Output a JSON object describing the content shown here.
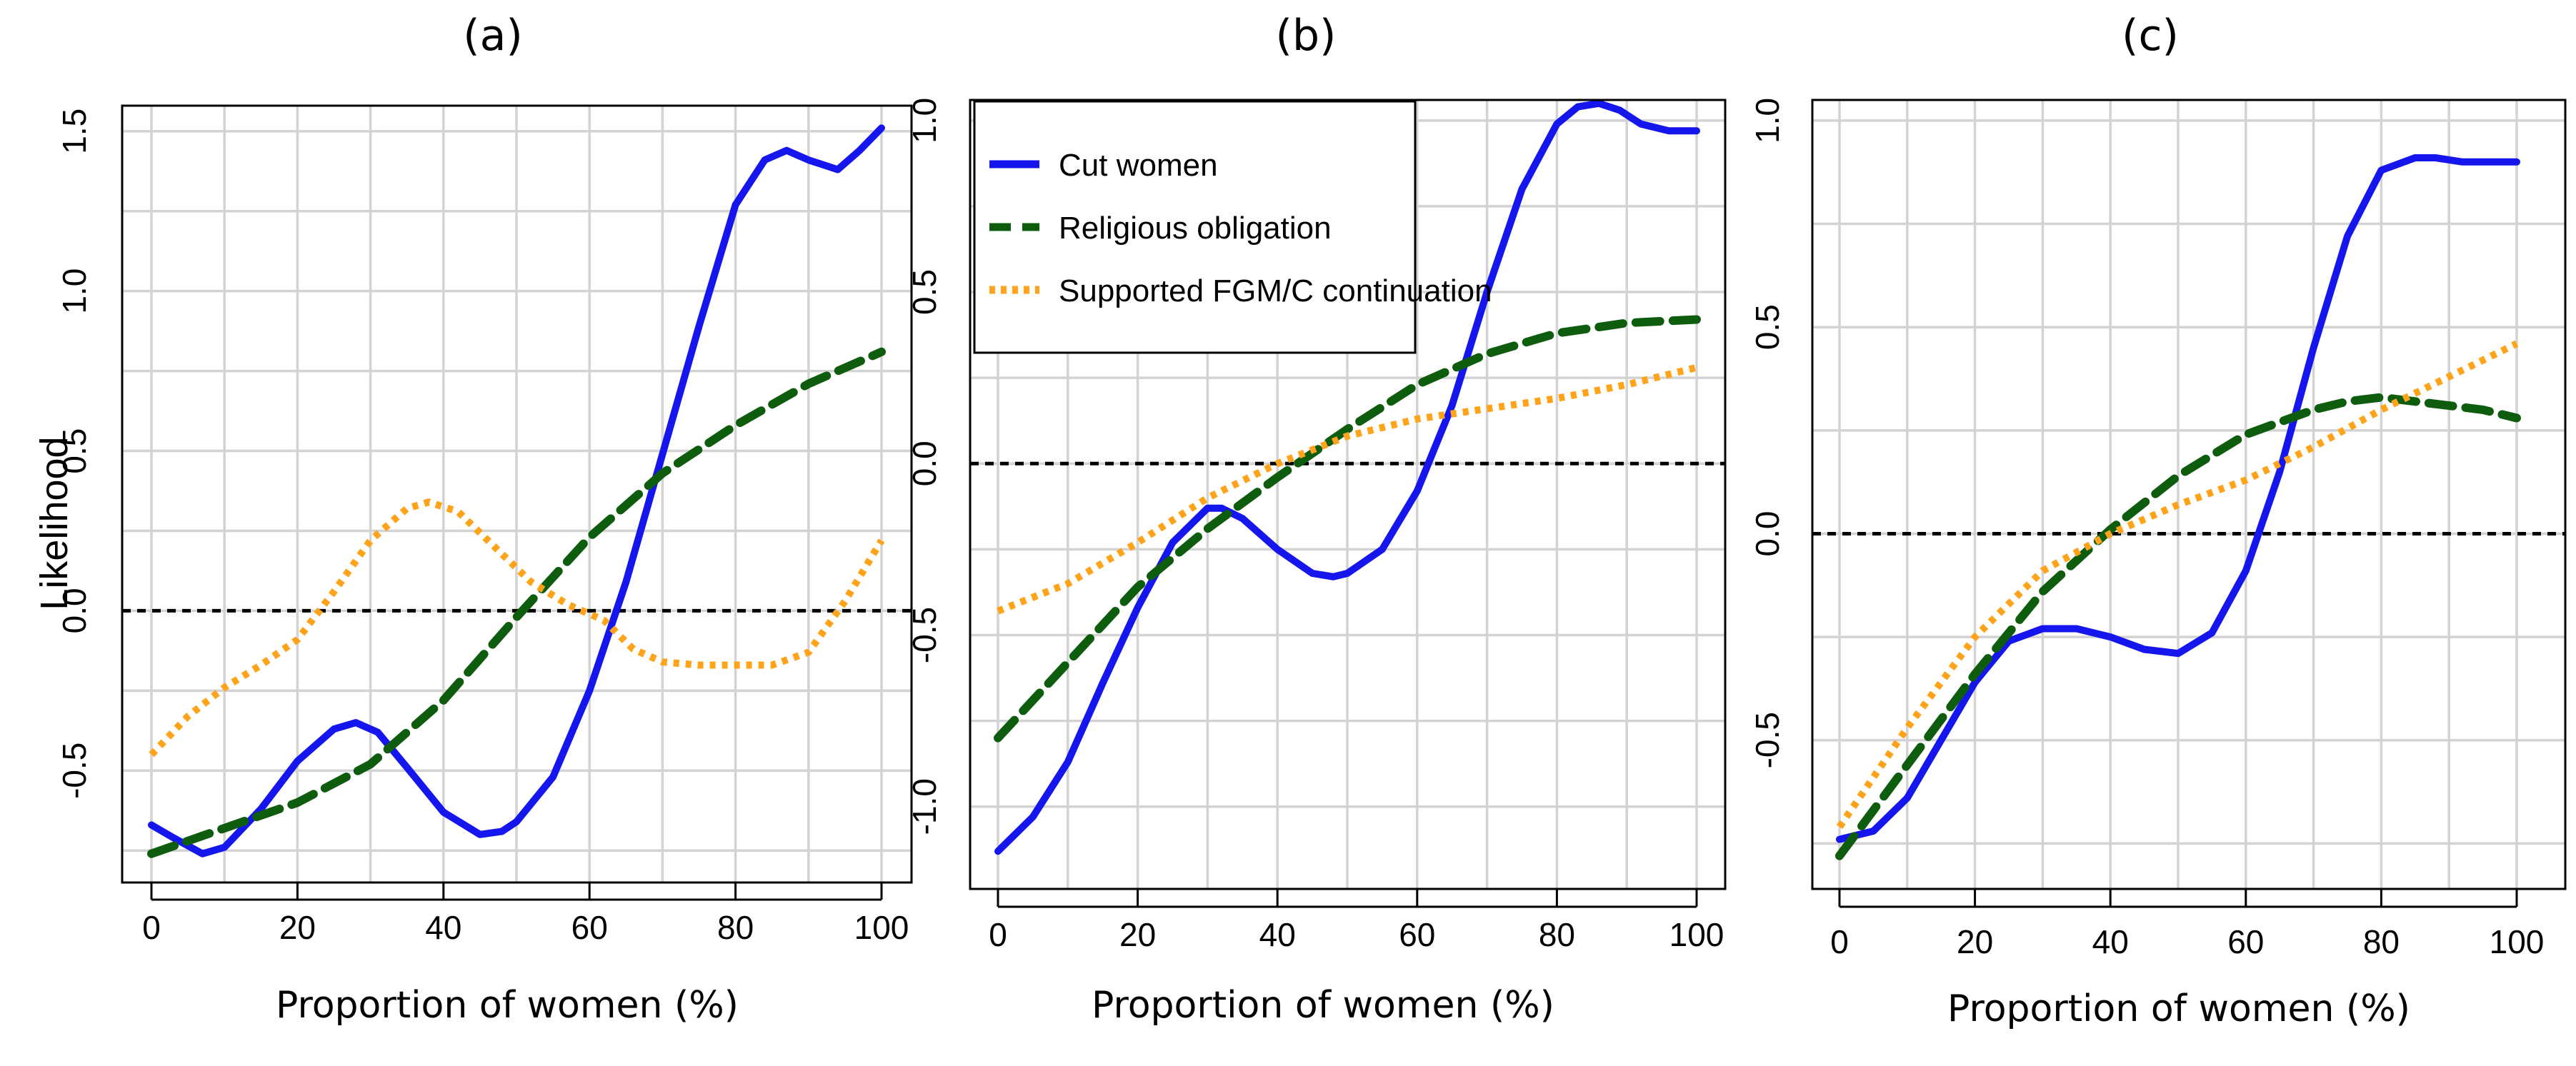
{
  "chart_data": [
    {
      "type": "line",
      "panel_title": "(a)",
      "xlabel": "Proportion of women (%)",
      "ylabel": "Likelihood",
      "xlim": [
        0,
        100
      ],
      "ylim": [
        -0.85,
        1.58
      ],
      "xticks": [
        0,
        20,
        40,
        60,
        80,
        100
      ],
      "yticks": [
        -0.5,
        0.0,
        0.5,
        1.0,
        1.5
      ],
      "ytick_labels": [
        "-0.5",
        "0.0",
        "0.5",
        "1.0",
        "1.5"
      ],
      "grid": true,
      "reference_line_y": 0.0,
      "series": [
        {
          "name": "Cut women",
          "color": "#1515ee",
          "style": "solid",
          "x": [
            0,
            3,
            7,
            10,
            15,
            20,
            25,
            28,
            31,
            35,
            40,
            45,
            48,
            50,
            55,
            60,
            65,
            70,
            75,
            80,
            84,
            87,
            90,
            94,
            97,
            100
          ],
          "y": [
            -0.67,
            -0.71,
            -0.76,
            -0.74,
            -0.62,
            -0.47,
            -0.37,
            -0.35,
            -0.38,
            -0.49,
            -0.63,
            -0.7,
            -0.69,
            -0.66,
            -0.52,
            -0.25,
            0.09,
            0.49,
            0.89,
            1.27,
            1.41,
            1.44,
            1.41,
            1.38,
            1.44,
            1.51
          ]
        },
        {
          "name": "Religious obligation",
          "color": "#0e5c0e",
          "style": "dashed",
          "x": [
            0,
            10,
            20,
            30,
            40,
            50,
            60,
            70,
            80,
            90,
            100
          ],
          "y": [
            -0.76,
            -0.68,
            -0.6,
            -0.48,
            -0.28,
            -0.02,
            0.23,
            0.43,
            0.58,
            0.71,
            0.81
          ]
        },
        {
          "name": "Supported FGM/C continuation",
          "color": "#ffa31a",
          "style": "dotted",
          "x": [
            0,
            5,
            10,
            15,
            20,
            25,
            30,
            35,
            38,
            42,
            47,
            52,
            57,
            62,
            66,
            70,
            75,
            80,
            85,
            90,
            95,
            100
          ],
          "y": [
            -0.45,
            -0.33,
            -0.24,
            -0.17,
            -0.09,
            0.06,
            0.22,
            0.32,
            0.34,
            0.31,
            0.2,
            0.09,
            0.02,
            -0.03,
            -0.12,
            -0.16,
            -0.17,
            -0.17,
            -0.17,
            -0.13,
            0.03,
            0.22
          ]
        }
      ]
    },
    {
      "type": "line",
      "panel_title": "(b)",
      "xlabel": "Proportion of women (%)",
      "ylabel": "",
      "xlim": [
        0,
        100
      ],
      "ylim": [
        -1.24,
        1.06
      ],
      "xticks": [
        0,
        20,
        40,
        60,
        80,
        100
      ],
      "yticks": [
        -1.0,
        -0.5,
        0.0,
        0.5,
        1.0
      ],
      "ytick_labels": [
        "-1.0",
        "-0.5",
        "0.0",
        "0.5",
        "1.0"
      ],
      "grid": true,
      "reference_line_y": 0.0,
      "legend_position": "top-left",
      "series": [
        {
          "name": "Cut women",
          "color": "#1515ee",
          "style": "solid",
          "x": [
            0,
            5,
            10,
            15,
            20,
            25,
            30,
            32,
            35,
            40,
            45,
            48,
            50,
            55,
            60,
            65,
            70,
            75,
            80,
            83,
            86,
            89,
            92,
            96,
            100
          ],
          "y": [
            -1.13,
            -1.03,
            -0.87,
            -0.64,
            -0.42,
            -0.23,
            -0.13,
            -0.13,
            -0.16,
            -0.25,
            -0.32,
            -0.33,
            -0.32,
            -0.25,
            -0.08,
            0.17,
            0.5,
            0.8,
            0.99,
            1.04,
            1.05,
            1.03,
            0.99,
            0.97,
            0.97
          ]
        },
        {
          "name": "Religious obligation",
          "color": "#0e5c0e",
          "style": "dashed",
          "x": [
            0,
            10,
            20,
            30,
            40,
            50,
            60,
            70,
            80,
            90,
            100
          ],
          "y": [
            -0.8,
            -0.58,
            -0.36,
            -0.19,
            -0.04,
            0.1,
            0.23,
            0.32,
            0.38,
            0.41,
            0.42
          ]
        },
        {
          "name": "Supported FGM/C continuation",
          "color": "#ffa31a",
          "style": "dotted",
          "x": [
            0,
            10,
            20,
            30,
            40,
            50,
            60,
            70,
            80,
            90,
            100
          ],
          "y": [
            -0.43,
            -0.35,
            -0.23,
            -0.1,
            0.0,
            0.08,
            0.13,
            0.16,
            0.19,
            0.23,
            0.28
          ]
        }
      ],
      "legend": [
        "Cut women",
        "Religious obligation",
        "Supported FGM/C continuation"
      ]
    },
    {
      "type": "line",
      "panel_title": "(c)",
      "xlabel": "Proportion of women (%)",
      "ylabel": "",
      "xlim": [
        0,
        100
      ],
      "ylim": [
        -0.86,
        1.05
      ],
      "xticks": [
        0,
        20,
        40,
        60,
        80,
        100
      ],
      "yticks": [
        -0.5,
        0.0,
        0.5,
        1.0
      ],
      "ytick_labels": [
        "-0.5",
        "0.0",
        "0.5",
        "1.0"
      ],
      "grid": true,
      "reference_line_y": 0.0,
      "series": [
        {
          "name": "Cut women",
          "color": "#1515ee",
          "style": "solid",
          "x": [
            0,
            5,
            10,
            15,
            20,
            25,
            30,
            35,
            40,
            45,
            50,
            55,
            60,
            65,
            70,
            75,
            80,
            85,
            88,
            92,
            96,
            100
          ],
          "y": [
            -0.74,
            -0.72,
            -0.64,
            -0.5,
            -0.36,
            -0.26,
            -0.23,
            -0.23,
            -0.25,
            -0.28,
            -0.29,
            -0.24,
            -0.09,
            0.15,
            0.45,
            0.72,
            0.88,
            0.91,
            0.91,
            0.9,
            0.9,
            0.9
          ]
        },
        {
          "name": "Religious obligation",
          "color": "#0e5c0e",
          "style": "dashed",
          "x": [
            0,
            10,
            20,
            30,
            40,
            50,
            60,
            70,
            75,
            80,
            85,
            90,
            95,
            100
          ],
          "y": [
            -0.78,
            -0.56,
            -0.34,
            -0.14,
            0.01,
            0.14,
            0.24,
            0.3,
            0.32,
            0.33,
            0.32,
            0.31,
            0.3,
            0.28
          ]
        },
        {
          "name": "Supported FGM/C continuation",
          "color": "#ffa31a",
          "style": "dotted",
          "x": [
            0,
            10,
            20,
            30,
            40,
            50,
            60,
            70,
            80,
            90,
            100
          ],
          "y": [
            -0.71,
            -0.47,
            -0.25,
            -0.09,
            0.0,
            0.07,
            0.13,
            0.21,
            0.3,
            0.38,
            0.46
          ]
        }
      ]
    }
  ]
}
